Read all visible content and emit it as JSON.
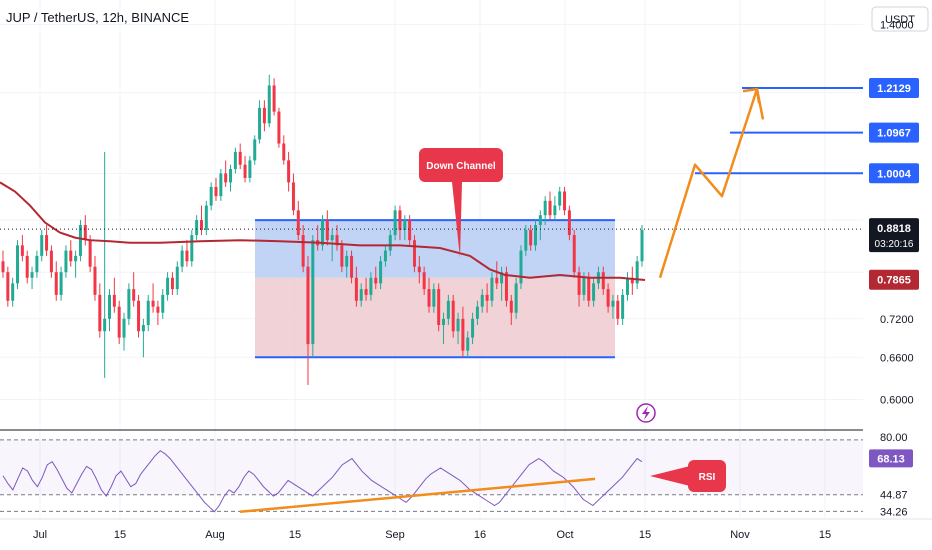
{
  "header": {
    "symbol_title": "JUP / TetherUS, 12h, BINANCE",
    "currency_button": "USDT"
  },
  "colors": {
    "up": "#22ab94",
    "down": "#f23645",
    "ma": "#b22833",
    "channel_line": "#2962ff",
    "upper_zone": "#b7cdf3",
    "lower_zone": "#f0cdd1",
    "arrow": "#f28c1b",
    "rsi_line": "#7e57c2",
    "rsi_trend": "#f28c1b",
    "callout": "#e8364a",
    "last_price_tag": "#131722",
    "ma_tag": "#b22833",
    "level_tag": "#2962ff",
    "rsi_tag": "#7e57c2"
  },
  "icons": {
    "alert": "lightning-bolt-icon"
  },
  "chart_data": [
    {
      "type": "candlestick",
      "title": "JUP / TetherUS, 12h, BINANCE",
      "ylim": [
        0.56,
        1.48
      ],
      "y_scale": "log",
      "price_ticks": [
        "1.4000",
        "0.7200",
        "0.6600",
        "0.6000"
      ],
      "x_ticks": [
        "Jul",
        "15",
        "Aug",
        "15",
        "Sep",
        "16",
        "Oct",
        "15",
        "Nov",
        "15"
      ],
      "grid": true,
      "last_price": "0.8818",
      "countdown": "03:20:16",
      "ma_value": "0.7865",
      "levels": [
        "1.2129",
        "1.0967",
        "1.0004"
      ],
      "channel": {
        "upper": 0.9,
        "middle": 0.79,
        "lower": 0.66
      },
      "annotations": {
        "channel_callout": "Down Channel"
      },
      "bullish_path": [
        0.79,
        1.02,
        0.95,
        1.21,
        1.13
      ],
      "candles": [
        [
          0.82,
          0.84,
          0.79,
          0.8
        ],
        [
          0.8,
          0.81,
          0.74,
          0.75
        ],
        [
          0.75,
          0.79,
          0.74,
          0.78
        ],
        [
          0.78,
          0.86,
          0.77,
          0.85
        ],
        [
          0.85,
          0.87,
          0.82,
          0.83
        ],
        [
          0.83,
          0.84,
          0.78,
          0.79
        ],
        [
          0.79,
          0.81,
          0.77,
          0.8
        ],
        [
          0.8,
          0.84,
          0.79,
          0.83
        ],
        [
          0.83,
          0.88,
          0.82,
          0.87
        ],
        [
          0.87,
          0.89,
          0.83,
          0.84
        ],
        [
          0.84,
          0.85,
          0.79,
          0.8
        ],
        [
          0.8,
          0.82,
          0.75,
          0.76
        ],
        [
          0.76,
          0.81,
          0.75,
          0.8
        ],
        [
          0.8,
          0.85,
          0.79,
          0.84
        ],
        [
          0.84,
          0.86,
          0.81,
          0.82
        ],
        [
          0.82,
          0.84,
          0.79,
          0.83
        ],
        [
          0.83,
          0.9,
          0.82,
          0.89
        ],
        [
          0.89,
          0.91,
          0.85,
          0.86
        ],
        [
          0.86,
          0.87,
          0.8,
          0.81
        ],
        [
          0.81,
          0.83,
          0.75,
          0.76
        ],
        [
          0.76,
          0.78,
          0.69,
          0.7
        ],
        [
          0.7,
          1.05,
          0.63,
          0.72
        ],
        [
          0.72,
          0.77,
          0.7,
          0.76
        ],
        [
          0.76,
          0.79,
          0.73,
          0.74
        ],
        [
          0.74,
          0.75,
          0.68,
          0.69
        ],
        [
          0.69,
          0.73,
          0.67,
          0.72
        ],
        [
          0.72,
          0.78,
          0.71,
          0.77
        ],
        [
          0.77,
          0.8,
          0.74,
          0.75
        ],
        [
          0.75,
          0.76,
          0.69,
          0.7
        ],
        [
          0.7,
          0.72,
          0.66,
          0.71
        ],
        [
          0.71,
          0.76,
          0.7,
          0.75
        ],
        [
          0.75,
          0.78,
          0.73,
          0.74
        ],
        [
          0.74,
          0.75,
          0.71,
          0.73
        ],
        [
          0.73,
          0.77,
          0.72,
          0.76
        ],
        [
          0.76,
          0.8,
          0.75,
          0.79
        ],
        [
          0.79,
          0.8,
          0.76,
          0.77
        ],
        [
          0.77,
          0.82,
          0.76,
          0.81
        ],
        [
          0.81,
          0.85,
          0.8,
          0.84
        ],
        [
          0.84,
          0.86,
          0.81,
          0.82
        ],
        [
          0.82,
          0.88,
          0.81,
          0.87
        ],
        [
          0.87,
          0.91,
          0.86,
          0.9
        ],
        [
          0.9,
          0.93,
          0.87,
          0.88
        ],
        [
          0.88,
          0.94,
          0.87,
          0.93
        ],
        [
          0.93,
          0.98,
          0.92,
          0.97
        ],
        [
          0.97,
          0.99,
          0.94,
          0.95
        ],
        [
          0.95,
          1.01,
          0.94,
          1.0
        ],
        [
          1.0,
          1.03,
          0.97,
          0.98
        ],
        [
          0.98,
          1.02,
          0.96,
          1.01
        ],
        [
          1.01,
          1.06,
          1.0,
          1.05
        ],
        [
          1.05,
          1.07,
          1.01,
          1.02
        ],
        [
          1.02,
          1.04,
          0.98,
          0.99
        ],
        [
          0.99,
          1.04,
          0.98,
          1.03
        ],
        [
          1.03,
          1.09,
          1.02,
          1.08
        ],
        [
          1.08,
          1.18,
          1.07,
          1.16
        ],
        [
          1.16,
          1.18,
          1.1,
          1.12
        ],
        [
          1.12,
          1.25,
          1.11,
          1.22
        ],
        [
          1.22,
          1.24,
          1.14,
          1.15
        ],
        [
          1.15,
          1.16,
          1.06,
          1.07
        ],
        [
          1.07,
          1.09,
          1.02,
          1.03
        ],
        [
          1.03,
          1.05,
          0.96,
          0.98
        ],
        [
          0.98,
          1.0,
          0.91,
          0.92
        ],
        [
          0.92,
          0.94,
          0.86,
          0.87
        ],
        [
          0.87,
          0.89,
          0.8,
          0.81
        ],
        [
          0.81,
          0.83,
          0.62,
          0.68
        ],
        [
          0.68,
          0.87,
          0.66,
          0.86
        ],
        [
          0.86,
          0.89,
          0.84,
          0.85
        ],
        [
          0.85,
          0.91,
          0.84,
          0.9
        ],
        [
          0.9,
          0.92,
          0.85,
          0.86
        ],
        [
          0.86,
          0.88,
          0.82,
          0.87
        ],
        [
          0.87,
          0.89,
          0.84,
          0.85
        ],
        [
          0.85,
          0.86,
          0.8,
          0.81
        ],
        [
          0.81,
          0.84,
          0.79,
          0.83
        ],
        [
          0.83,
          0.84,
          0.78,
          0.79
        ],
        [
          0.79,
          0.81,
          0.74,
          0.75
        ],
        [
          0.75,
          0.78,
          0.74,
          0.77
        ],
        [
          0.77,
          0.79,
          0.75,
          0.76
        ],
        [
          0.76,
          0.8,
          0.75,
          0.79
        ],
        [
          0.79,
          0.81,
          0.77,
          0.78
        ],
        [
          0.78,
          0.83,
          0.77,
          0.82
        ],
        [
          0.82,
          0.85,
          0.81,
          0.84
        ],
        [
          0.84,
          0.88,
          0.83,
          0.87
        ],
        [
          0.87,
          0.93,
          0.86,
          0.92
        ],
        [
          0.92,
          0.93,
          0.86,
          0.88
        ],
        [
          0.88,
          0.91,
          0.86,
          0.9
        ],
        [
          0.9,
          0.91,
          0.85,
          0.86
        ],
        [
          0.86,
          0.87,
          0.8,
          0.81
        ],
        [
          0.81,
          0.83,
          0.78,
          0.8
        ],
        [
          0.8,
          0.81,
          0.76,
          0.77
        ],
        [
          0.77,
          0.79,
          0.73,
          0.74
        ],
        [
          0.74,
          0.78,
          0.73,
          0.77
        ],
        [
          0.77,
          0.78,
          0.7,
          0.71
        ],
        [
          0.71,
          0.73,
          0.68,
          0.72
        ],
        [
          0.72,
          0.76,
          0.71,
          0.75
        ],
        [
          0.75,
          0.76,
          0.69,
          0.7
        ],
        [
          0.7,
          0.73,
          0.68,
          0.72
        ],
        [
          0.72,
          0.74,
          0.66,
          0.67
        ],
        [
          0.67,
          0.7,
          0.66,
          0.69
        ],
        [
          0.69,
          0.73,
          0.68,
          0.72
        ],
        [
          0.72,
          0.75,
          0.71,
          0.74
        ],
        [
          0.74,
          0.77,
          0.73,
          0.76
        ],
        [
          0.76,
          0.78,
          0.73,
          0.75
        ],
        [
          0.75,
          0.8,
          0.74,
          0.79
        ],
        [
          0.79,
          0.82,
          0.77,
          0.78
        ],
        [
          0.78,
          0.81,
          0.75,
          0.8
        ],
        [
          0.8,
          0.81,
          0.74,
          0.75
        ],
        [
          0.75,
          0.76,
          0.71,
          0.73
        ],
        [
          0.73,
          0.79,
          0.72,
          0.78
        ],
        [
          0.78,
          0.85,
          0.77,
          0.84
        ],
        [
          0.84,
          0.89,
          0.83,
          0.88
        ],
        [
          0.88,
          0.89,
          0.84,
          0.85
        ],
        [
          0.85,
          0.9,
          0.84,
          0.89
        ],
        [
          0.89,
          0.92,
          0.86,
          0.91
        ],
        [
          0.91,
          0.95,
          0.89,
          0.94
        ],
        [
          0.94,
          0.96,
          0.9,
          0.91
        ],
        [
          0.91,
          0.95,
          0.9,
          0.93
        ],
        [
          0.93,
          0.97,
          0.92,
          0.96
        ],
        [
          0.96,
          0.97,
          0.91,
          0.92
        ],
        [
          0.92,
          0.93,
          0.86,
          0.87
        ],
        [
          0.87,
          0.88,
          0.79,
          0.8
        ],
        [
          0.8,
          0.81,
          0.74,
          0.76
        ],
        [
          0.76,
          0.8,
          0.75,
          0.79
        ],
        [
          0.79,
          0.8,
          0.74,
          0.75
        ],
        [
          0.75,
          0.79,
          0.74,
          0.78
        ],
        [
          0.78,
          0.81,
          0.77,
          0.8
        ],
        [
          0.8,
          0.81,
          0.76,
          0.77
        ],
        [
          0.77,
          0.78,
          0.73,
          0.74
        ],
        [
          0.74,
          0.76,
          0.72,
          0.75
        ],
        [
          0.75,
          0.76,
          0.71,
          0.72
        ],
        [
          0.72,
          0.77,
          0.71,
          0.76
        ],
        [
          0.76,
          0.8,
          0.75,
          0.79
        ],
        [
          0.79,
          0.81,
          0.76,
          0.78
        ],
        [
          0.78,
          0.83,
          0.77,
          0.82
        ],
        [
          0.82,
          0.89,
          0.81,
          0.88
        ]
      ],
      "ma": [
        [
          0,
          0.98
        ],
        [
          15,
          0.96
        ],
        [
          30,
          0.93
        ],
        [
          45,
          0.895
        ],
        [
          60,
          0.875
        ],
        [
          75,
          0.865
        ],
        [
          90,
          0.86
        ],
        [
          110,
          0.858
        ],
        [
          130,
          0.855
        ],
        [
          160,
          0.855
        ],
        [
          200,
          0.858
        ],
        [
          240,
          0.86
        ],
        [
          280,
          0.858
        ],
        [
          320,
          0.855
        ],
        [
          360,
          0.85
        ],
        [
          400,
          0.85
        ],
        [
          440,
          0.845
        ],
        [
          470,
          0.83
        ],
        [
          490,
          0.805
        ],
        [
          505,
          0.795
        ],
        [
          530,
          0.79
        ],
        [
          560,
          0.795
        ],
        [
          590,
          0.79
        ],
        [
          620,
          0.79
        ],
        [
          645,
          0.786
        ]
      ]
    },
    {
      "type": "line",
      "series": [
        {
          "name": "RSI",
          "values": [
            57,
            52,
            48,
            55,
            62,
            60,
            54,
            50,
            56,
            64,
            66,
            61,
            55,
            49,
            46,
            52,
            58,
            63,
            61,
            55,
            48,
            44,
            50,
            57,
            60,
            55,
            50,
            52,
            58,
            62,
            66,
            70,
            73,
            71,
            68,
            64,
            60,
            56,
            52,
            48,
            44,
            40,
            37,
            34,
            38,
            44,
            48,
            46,
            50,
            56,
            60,
            58,
            54,
            50,
            47,
            44,
            46,
            50,
            54,
            52,
            50,
            48,
            46,
            44,
            47,
            50,
            53,
            56,
            60,
            64,
            66,
            68,
            64,
            60,
            57,
            54,
            52,
            50,
            48,
            46,
            44,
            42,
            40,
            43,
            47,
            51,
            55,
            58,
            60,
            62,
            60,
            58,
            56,
            54,
            51,
            48,
            46,
            44,
            42,
            40,
            38,
            40,
            44,
            48,
            52,
            56,
            60,
            64,
            66,
            68,
            66,
            63,
            60,
            58,
            56,
            53,
            50,
            46,
            42,
            40,
            38,
            41,
            44,
            47,
            50,
            53,
            56,
            60,
            64,
            68,
            66
          ]
        }
      ],
      "ylim": [
        30,
        85
      ],
      "levels": [
        80.0,
        44.87,
        34.26
      ],
      "level_labels": [
        "80.00",
        "44.87",
        "34.26"
      ],
      "current": "68.13",
      "trendline": [
        34,
        55
      ],
      "annotations": {
        "rsi_callout": "RSI"
      }
    }
  ]
}
